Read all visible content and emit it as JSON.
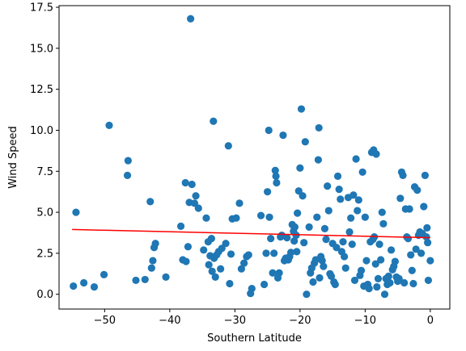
{
  "chart_data": {
    "type": "scatter",
    "title": "",
    "xlabel": "Southern Latitude",
    "ylabel": "Wind Speed",
    "xlim": [
      -57,
      3
    ],
    "ylim": [
      -0.9,
      17.6
    ],
    "xticks": [
      -50,
      -40,
      -30,
      -20,
      -10,
      0
    ],
    "yticks": [
      0.0,
      2.5,
      5.0,
      7.5,
      10.0,
      12.5,
      15.0,
      17.5
    ],
    "grid": false,
    "legend": "none",
    "colors": {
      "points": "#1f77b4",
      "regression": "#ff0000"
    },
    "regression_line": {
      "x": [
        -55,
        0
      ],
      "y": [
        3.95,
        3.45
      ]
    },
    "points": [
      [
        -54.8,
        0.5
      ],
      [
        -54.4,
        5.0
      ],
      [
        -53.2,
        0.7
      ],
      [
        -51.6,
        0.45
      ],
      [
        -50.1,
        1.2
      ],
      [
        -49.3,
        10.3
      ],
      [
        -46.4,
        8.15
      ],
      [
        -46.5,
        7.25
      ],
      [
        -45.2,
        0.85
      ],
      [
        -43.8,
        0.9
      ],
      [
        -43.0,
        5.65
      ],
      [
        -42.8,
        1.6
      ],
      [
        -42.6,
        2.05
      ],
      [
        -42.4,
        2.85
      ],
      [
        -42.2,
        3.1
      ],
      [
        -40.6,
        1.05
      ],
      [
        -38.3,
        4.15
      ],
      [
        -38.0,
        2.1
      ],
      [
        -37.6,
        6.8
      ],
      [
        -37.5,
        2.0
      ],
      [
        -37.2,
        2.9
      ],
      [
        -37.0,
        5.6
      ],
      [
        -36.8,
        16.8
      ],
      [
        -36.6,
        6.7
      ],
      [
        -36.2,
        5.55
      ],
      [
        -36.0,
        6.0
      ],
      [
        -35.6,
        5.25
      ],
      [
        -34.8,
        2.7
      ],
      [
        -34.4,
        4.65
      ],
      [
        -34.1,
        3.2
      ],
      [
        -34.0,
        1.8
      ],
      [
        -33.8,
        2.35
      ],
      [
        -33.6,
        3.4
      ],
      [
        -33.5,
        1.4
      ],
      [
        -33.3,
        10.55
      ],
      [
        -33.2,
        2.2
      ],
      [
        -33.0,
        1.05
      ],
      [
        -32.8,
        2.4
      ],
      [
        -32.5,
        2.6
      ],
      [
        -32.2,
        1.55
      ],
      [
        -32.0,
        2.8
      ],
      [
        -31.4,
        3.1
      ],
      [
        -31.0,
        9.05
      ],
      [
        -30.8,
        0.65
      ],
      [
        -30.6,
        2.45
      ],
      [
        -30.4,
        4.6
      ],
      [
        -29.8,
        4.65
      ],
      [
        -29.3,
        5.55
      ],
      [
        -29.0,
        1.55
      ],
      [
        -28.6,
        1.9
      ],
      [
        -28.2,
        2.3
      ],
      [
        -27.9,
        2.4
      ],
      [
        -27.6,
        0.05
      ],
      [
        -27.4,
        0.35
      ],
      [
        -26.0,
        4.8
      ],
      [
        -25.5,
        0.6
      ],
      [
        -25.2,
        2.5
      ],
      [
        -25.0,
        6.25
      ],
      [
        -24.8,
        10.0
      ],
      [
        -24.7,
        4.7
      ],
      [
        -24.5,
        3.4
      ],
      [
        -24.2,
        1.3
      ],
      [
        -24.0,
        2.5
      ],
      [
        -23.8,
        7.55
      ],
      [
        -23.7,
        7.2
      ],
      [
        -23.6,
        6.8
      ],
      [
        -23.4,
        1.0
      ],
      [
        -23.2,
        1.3
      ],
      [
        -23.0,
        3.5
      ],
      [
        -22.8,
        3.6
      ],
      [
        -22.6,
        9.7
      ],
      [
        -22.4,
        2.05
      ],
      [
        -22.2,
        2.2
      ],
      [
        -22.0,
        3.45
      ],
      [
        -21.8,
        2.1
      ],
      [
        -21.6,
        2.3
      ],
      [
        -21.4,
        2.55
      ],
      [
        -21.2,
        4.25
      ],
      [
        -21.0,
        3.85
      ],
      [
        -20.9,
        3.25
      ],
      [
        -20.8,
        4.1
      ],
      [
        -20.6,
        3.6
      ],
      [
        -20.5,
        2.6
      ],
      [
        -20.4,
        4.95
      ],
      [
        -20.2,
        6.3
      ],
      [
        -20.0,
        7.7
      ],
      [
        -19.8,
        11.3
      ],
      [
        -19.6,
        6.0
      ],
      [
        -19.4,
        3.15
      ],
      [
        -19.2,
        9.3
      ],
      [
        -19.0,
        0.0
      ],
      [
        -18.6,
        4.1
      ],
      [
        -18.4,
        1.3
      ],
      [
        -18.2,
        1.6
      ],
      [
        -18.0,
        0.75
      ],
      [
        -17.8,
        1.9
      ],
      [
        -17.6,
        2.1
      ],
      [
        -17.4,
        4.7
      ],
      [
        -17.2,
        8.2
      ],
      [
        -17.1,
        10.15
      ],
      [
        -17.0,
        1.0
      ],
      [
        -16.8,
        2.3
      ],
      [
        -16.6,
        2.05
      ],
      [
        -16.4,
        1.7
      ],
      [
        -16.2,
        4.0
      ],
      [
        -16.0,
        3.35
      ],
      [
        -15.8,
        6.6
      ],
      [
        -15.6,
        5.1
      ],
      [
        -15.4,
        1.25
      ],
      [
        -15.2,
        1.1
      ],
      [
        -15.0,
        3.1
      ],
      [
        -14.8,
        0.75
      ],
      [
        -14.6,
        0.6
      ],
      [
        -14.4,
        2.85
      ],
      [
        -14.2,
        7.2
      ],
      [
        -14.0,
        6.4
      ],
      [
        -13.8,
        5.8
      ],
      [
        -13.6,
        2.6
      ],
      [
        -13.4,
        3.2
      ],
      [
        -13.2,
        2.3
      ],
      [
        -13.0,
        1.6
      ],
      [
        -12.6,
        5.9
      ],
      [
        -12.4,
        3.8
      ],
      [
        -12.2,
        4.65
      ],
      [
        -12.0,
        3.05
      ],
      [
        -11.8,
        6.05
      ],
      [
        -11.6,
        0.85
      ],
      [
        -11.4,
        8.25
      ],
      [
        -11.2,
        5.1
      ],
      [
        -11.0,
        5.75
      ],
      [
        -10.8,
        1.15
      ],
      [
        -10.6,
        1.45
      ],
      [
        -10.4,
        7.45
      ],
      [
        -10.2,
        0.5
      ],
      [
        -10.0,
        4.7
      ],
      [
        -9.8,
        2.05
      ],
      [
        -9.6,
        0.6
      ],
      [
        -9.4,
        0.35
      ],
      [
        -9.2,
        3.2
      ],
      [
        -9.0,
        8.65
      ],
      [
        -8.8,
        3.35
      ],
      [
        -8.7,
        8.8
      ],
      [
        -8.6,
        3.5
      ],
      [
        -8.4,
        1.85
      ],
      [
        -8.3,
        8.55
      ],
      [
        -8.2,
        0.45
      ],
      [
        -8.0,
        0.95
      ],
      [
        -7.8,
        3.05
      ],
      [
        -7.6,
        2.1
      ],
      [
        -7.4,
        5.0
      ],
      [
        -7.2,
        4.3
      ],
      [
        -7.0,
        0.0
      ],
      [
        -6.8,
        0.95
      ],
      [
        -6.6,
        0.6
      ],
      [
        -6.4,
        1.1
      ],
      [
        -6.2,
        0.7
      ],
      [
        -6.0,
        2.7
      ],
      [
        -5.8,
        1.5
      ],
      [
        -5.6,
        1.7
      ],
      [
        -5.4,
        2.0
      ],
      [
        -5.2,
        1.05
      ],
      [
        -5.0,
        0.8
      ],
      [
        -4.8,
        0.95
      ],
      [
        -4.6,
        5.85
      ],
      [
        -4.4,
        7.45
      ],
      [
        -4.2,
        7.25
      ],
      [
        -4.0,
        0.7
      ],
      [
        -3.8,
        5.2
      ],
      [
        -3.6,
        3.5
      ],
      [
        -3.4,
        3.4
      ],
      [
        -3.2,
        5.2
      ],
      [
        -3.0,
        2.4
      ],
      [
        -2.8,
        1.45
      ],
      [
        -2.6,
        0.65
      ],
      [
        -2.4,
        6.55
      ],
      [
        -2.2,
        2.75
      ],
      [
        -2.0,
        6.35
      ],
      [
        -1.8,
        3.6
      ],
      [
        -1.6,
        3.8
      ],
      [
        -1.4,
        2.5
      ],
      [
        -1.2,
        3.7
      ],
      [
        -1.0,
        5.35
      ],
      [
        -0.8,
        7.25
      ],
      [
        -0.6,
        3.5
      ],
      [
        -0.5,
        4.05
      ],
      [
        -0.4,
        3.15
      ],
      [
        -0.3,
        0.85
      ],
      [
        0.0,
        2.05
      ]
    ]
  }
}
